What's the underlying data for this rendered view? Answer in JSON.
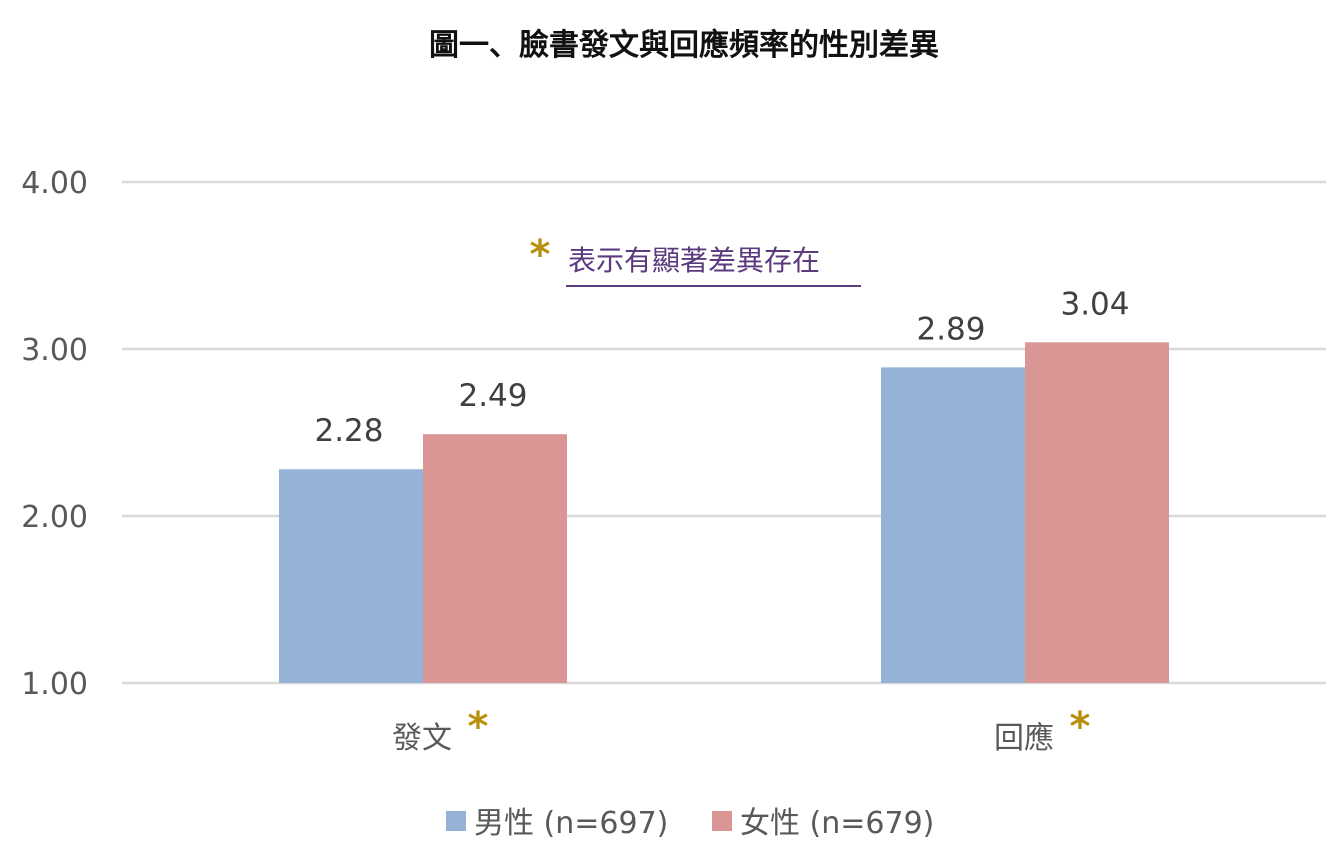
{
  "chart_data": {
    "type": "bar",
    "title": "圖一、臉書發文與回應頻率的性別差異",
    "categories": [
      "發文",
      "回應"
    ],
    "series": [
      {
        "name": "男性 (n=697)",
        "values": [
          2.28,
          2.89
        ],
        "color": "#95b3d7"
      },
      {
        "name": "女性 (n=679)",
        "values": [
          2.49,
          3.04
        ],
        "color": "#d99694"
      }
    ],
    "ylim": [
      1.0,
      4.0
    ],
    "yticks": [
      "1.00",
      "2.00",
      "3.00",
      "4.00"
    ],
    "grid": true,
    "legend_position": "bottom",
    "data_labels": [
      [
        "2.28",
        "2.89"
      ],
      [
        "2.49",
        "3.04"
      ]
    ],
    "significance_marker": "*",
    "significant_categories": [
      "發文",
      "回應"
    ],
    "annotation": "表示有顯著差異存在",
    "colors": {
      "grid": "#d9d9d9",
      "star": "#b8900f",
      "annotation": "#5b3a7e"
    }
  }
}
